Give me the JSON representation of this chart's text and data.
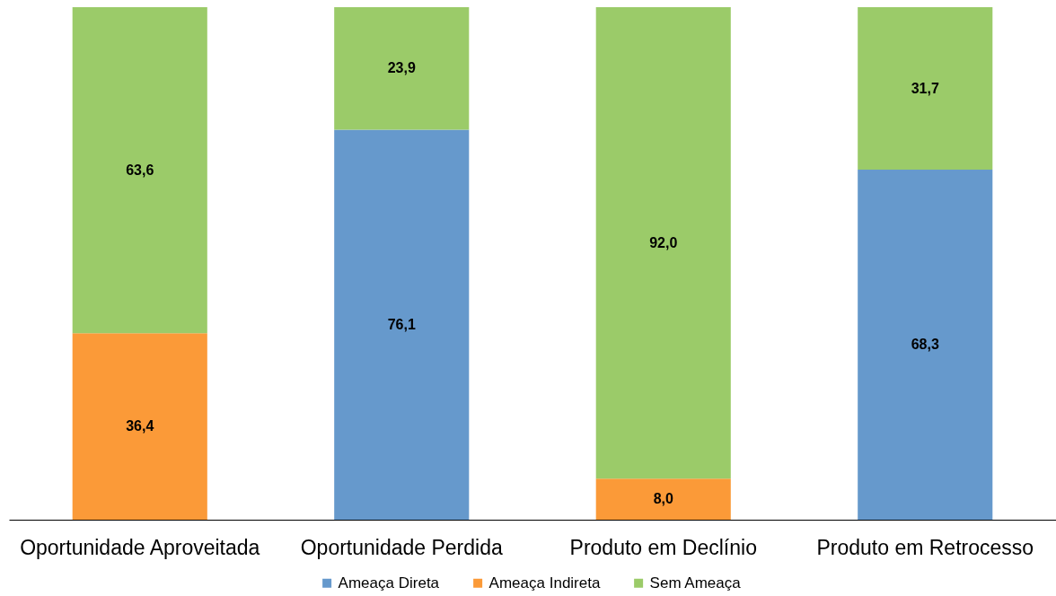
{
  "chart_data": {
    "type": "bar",
    "stacked": true,
    "categories": [
      "Oportunidade Aproveitada",
      "Oportunidade Perdida",
      "Produto em Declínio",
      "Produto em Retrocesso"
    ],
    "series": [
      {
        "name": "Ameaça Direta",
        "color": "#6699cc",
        "values": [
          null,
          76.1,
          null,
          68.3
        ],
        "value_labels": [
          null,
          "76,1",
          null,
          "68,3"
        ]
      },
      {
        "name": "Ameaça Indireta",
        "color": "#fb9a38",
        "values": [
          36.4,
          null,
          8.0,
          null
        ],
        "value_labels": [
          "36,4",
          null,
          "8,0",
          null
        ]
      },
      {
        "name": "Sem Ameaça",
        "color": "#9bcb69",
        "values": [
          63.6,
          23.9,
          92.0,
          31.7
        ],
        "value_labels": [
          "63,6",
          "23,9",
          "92,0",
          "31,7"
        ]
      }
    ],
    "ylim": [
      0,
      100
    ],
    "tick_labels": "x",
    "legend": "bottom",
    "grid": false
  }
}
